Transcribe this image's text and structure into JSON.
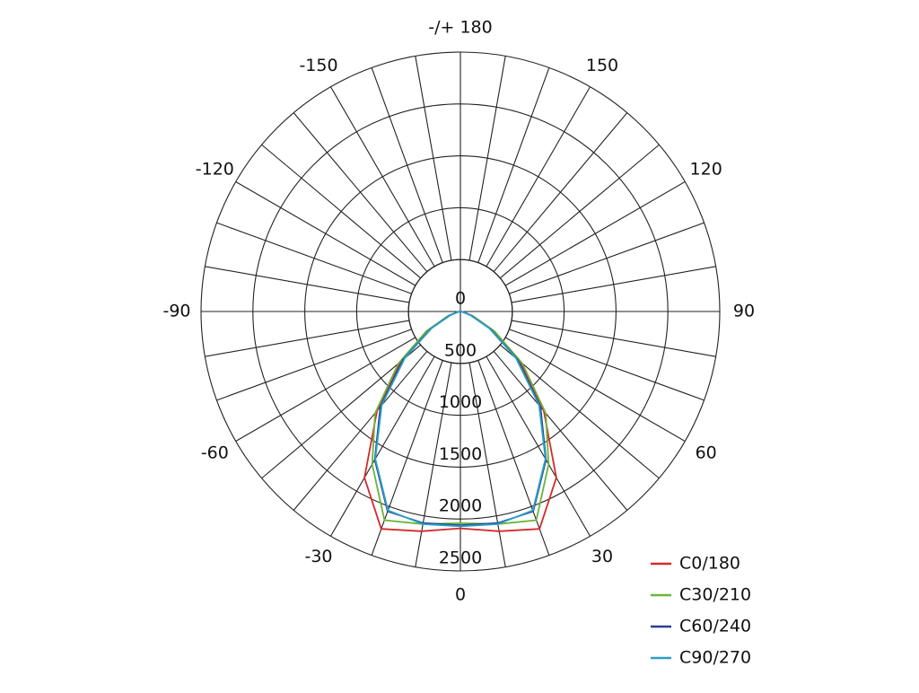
{
  "chart_data": {
    "type": "polar",
    "angles": [
      -90,
      -80,
      -70,
      -60,
      -50,
      -40,
      -30,
      -20,
      -10,
      0,
      10,
      20,
      30,
      40,
      50,
      60,
      70,
      80,
      90
    ],
    "angle_ticks": [
      0,
      30,
      60,
      90,
      120,
      150,
      {
        "value": 180,
        "label": "-/+ 180"
      },
      -150,
      -120,
      -90,
      -60,
      -30
    ],
    "rlim": [
      0,
      2500
    ],
    "rticks": [
      0,
      500,
      1000,
      1500,
      2000,
      2500
    ],
    "legend": "lower right",
    "series": [
      {
        "name": "C0/180",
        "color": "#d42b2b",
        "values": [
          0,
          30,
          120,
          350,
          750,
          1250,
          1850,
          2230,
          2150,
          2090,
          2150,
          2230,
          1850,
          1250,
          750,
          350,
          120,
          30,
          0
        ]
      },
      {
        "name": "C30/210",
        "color": "#6bb33a",
        "values": [
          0,
          30,
          130,
          380,
          780,
          1280,
          1700,
          2140,
          2080,
          2040,
          2080,
          2140,
          1700,
          1280,
          780,
          380,
          130,
          30,
          0
        ]
      },
      {
        "name": "C60/240",
        "color": "#2b3f8f",
        "values": [
          0,
          25,
          110,
          330,
          720,
          1200,
          1650,
          2050,
          2070,
          2060,
          2070,
          2050,
          1650,
          1200,
          720,
          330,
          110,
          25,
          0
        ]
      },
      {
        "name": "C90/270",
        "color": "#2aa0c8",
        "values": [
          0,
          20,
          100,
          320,
          700,
          1180,
          1640,
          2040,
          2080,
          2070,
          2080,
          2040,
          1640,
          1180,
          700,
          320,
          100,
          20,
          0
        ]
      }
    ]
  }
}
